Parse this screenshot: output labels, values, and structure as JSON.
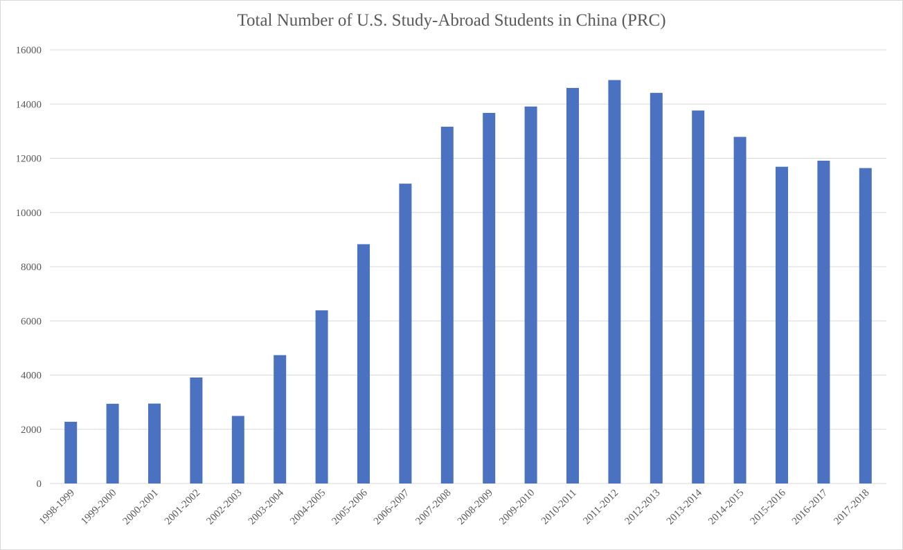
{
  "chart_data": {
    "type": "bar",
    "title": "Total Number of U.S. Study-Abroad Students in China (PRC)",
    "xlabel": "",
    "ylabel": "",
    "ylim": [
      0,
      16000
    ],
    "yticks": [
      0,
      2000,
      4000,
      6000,
      8000,
      10000,
      12000,
      14000,
      16000
    ],
    "grid": true,
    "legend": "none",
    "bar_color": "#4a72c0",
    "categories": [
      "1998-1999",
      "1999-2000",
      "2000-2001",
      "2001-2002",
      "2002-2003",
      "2003-2004",
      "2004-2005",
      "2005-2006",
      "2006-2007",
      "2007-2008",
      "2008-2009",
      "2009-2010",
      "2010-2011",
      "2011-2012",
      "2012-2013",
      "2013-2014",
      "2014-2015",
      "2015-2016",
      "2016-2017",
      "2017-2018"
    ],
    "values": [
      2278,
      2942,
      2949,
      3911,
      2493,
      4737,
      6389,
      8830,
      11064,
      13165,
      13674,
      13910,
      14596,
      14887,
      14413,
      13763,
      12790,
      11688,
      11910,
      11639
    ]
  }
}
